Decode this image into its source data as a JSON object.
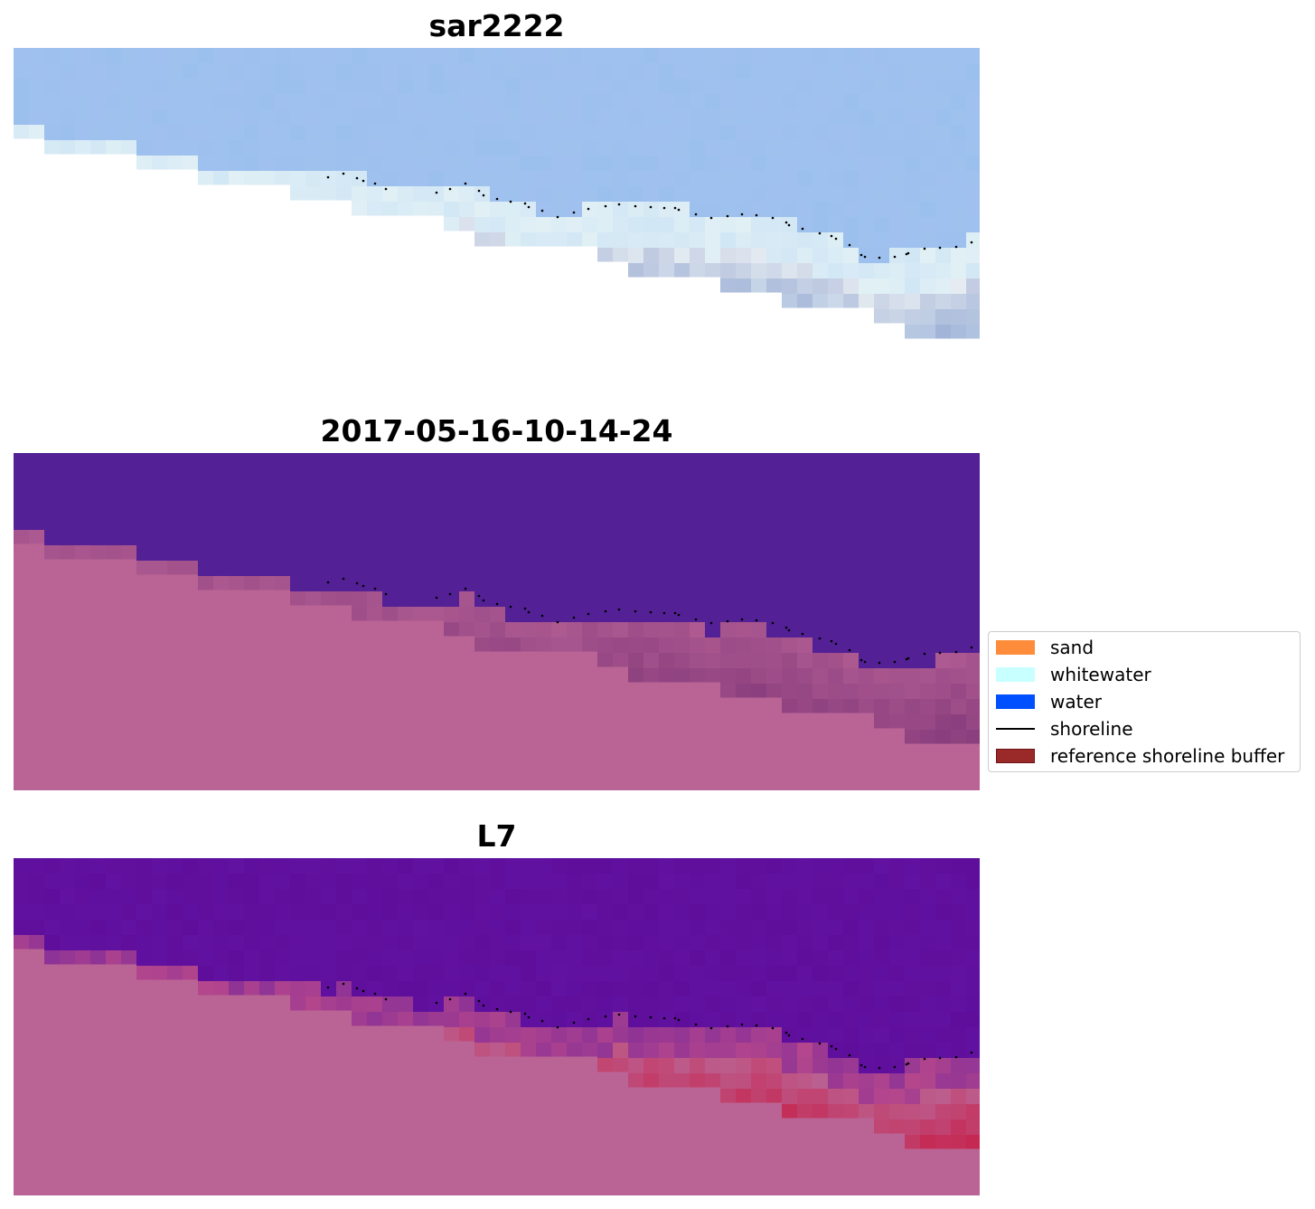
{
  "panels": [
    {
      "title": "sar2222",
      "variant": "rgb"
    },
    {
      "title": "2017-05-16-10-14-24",
      "variant": "classified"
    },
    {
      "title": "L7",
      "variant": "index"
    }
  ],
  "legend": {
    "items": [
      {
        "label": "sand",
        "color": "#ff8c3a",
        "kind": "patch"
      },
      {
        "label": "whitewater",
        "color": "#c8ffff",
        "kind": "patch"
      },
      {
        "label": "water",
        "color": "#0050ff",
        "kind": "patch"
      },
      {
        "label": "shoreline",
        "color": "#000000",
        "kind": "line"
      },
      {
        "label": "reference shoreline buffer",
        "color": "#9a2a2a",
        "kind": "patch"
      }
    ]
  },
  "colors": {
    "rgb_sky": "#9cc0ee",
    "rgb_shore": "#e8eef3",
    "rgb_deep": "#6b8fc8",
    "classified_water": "#532096",
    "classified_land": "#ba6495",
    "index_water": "#5e0e9a",
    "index_land": "#ba6495",
    "index_hot": "#c8143c"
  }
}
